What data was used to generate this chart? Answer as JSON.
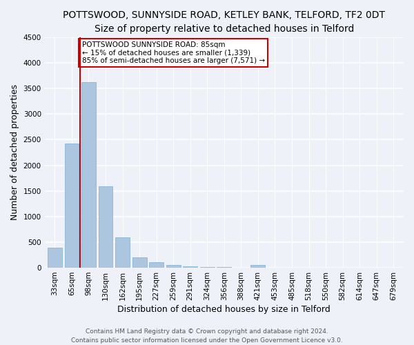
{
  "title": "POTTSWOOD, SUNNYSIDE ROAD, KETLEY BANK, TELFORD, TF2 0DT",
  "subtitle": "Size of property relative to detached houses in Telford",
  "xlabel": "Distribution of detached houses by size in Telford",
  "ylabel": "Number of detached properties",
  "categories": [
    "33sqm",
    "65sqm",
    "98sqm",
    "130sqm",
    "162sqm",
    "195sqm",
    "227sqm",
    "259sqm",
    "291sqm",
    "324sqm",
    "356sqm",
    "388sqm",
    "421sqm",
    "453sqm",
    "485sqm",
    "518sqm",
    "550sqm",
    "582sqm",
    "614sqm",
    "647sqm",
    "679sqm"
  ],
  "values": [
    390,
    2420,
    3620,
    1590,
    590,
    200,
    105,
    55,
    30,
    15,
    10,
    5,
    60,
    5,
    0,
    0,
    0,
    0,
    0,
    0,
    0
  ],
  "bar_color": "#adc6e0",
  "bar_edge_color": "#7aafd4",
  "vline_x": 1.5,
  "vline_color": "#cc0000",
  "annotation_text": "POTTSWOOD SUNNYSIDE ROAD: 85sqm\n← 15% of detached houses are smaller (1,339)\n85% of semi-detached houses are larger (7,571) →",
  "annotation_box_color": "#cc0000",
  "ylim": [
    0,
    4500
  ],
  "yticks": [
    0,
    500,
    1000,
    1500,
    2000,
    2500,
    3000,
    3500,
    4000,
    4500
  ],
  "footer": "Contains HM Land Registry data © Crown copyright and database right 2024.\nContains public sector information licensed under the Open Government Licence v3.0.",
  "bg_color": "#eef2f8",
  "grid_color": "#ffffff",
  "title_fontsize": 10,
  "axis_label_fontsize": 9,
  "tick_fontsize": 7.5,
  "footer_fontsize": 6.5
}
